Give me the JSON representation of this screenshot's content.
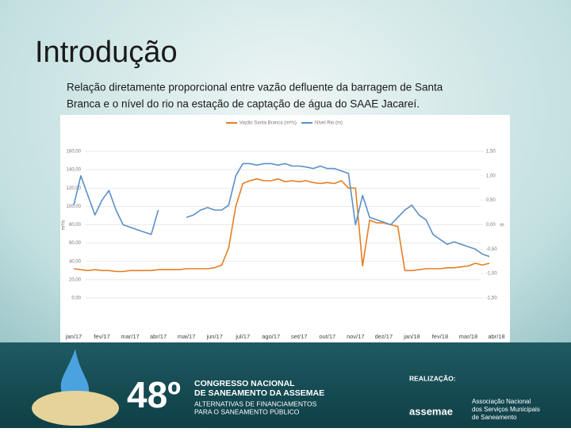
{
  "slide": {
    "title": "Introdução",
    "text_lines": [
      "Relação diretamente proporcional entre vazão defluente da barragem de Santa",
      "Branca e o nível do rio na estação de captação de água do SAAE Jacareí."
    ]
  },
  "chart_data": {
    "type": "line",
    "categories": [
      "jan/17",
      null,
      null,
      null,
      "fev/17",
      null,
      null,
      null,
      "mar/17",
      null,
      null,
      null,
      "abr/17",
      null,
      null,
      null,
      "mai/17",
      null,
      null,
      null,
      "jun/17",
      null,
      null,
      null,
      "jul/17",
      null,
      null,
      null,
      "ago/17",
      null,
      null,
      null,
      "set/17",
      null,
      null,
      null,
      "out/17",
      null,
      null,
      null,
      "nov/17",
      null,
      null,
      null,
      "dez/17",
      null,
      null,
      null,
      "jan/18",
      null,
      null,
      null,
      "fev/18",
      null,
      null,
      null,
      "mar/18",
      null,
      null,
      null,
      "abr/18"
    ],
    "series": [
      {
        "name": "Vazão Santa Branca (m³/s)",
        "color": "#e67e22",
        "values": [
          32,
          31,
          30,
          31,
          30,
          30,
          29,
          29,
          30,
          30,
          30,
          30,
          31,
          31,
          31,
          31,
          32,
          32,
          32,
          32,
          33,
          36,
          55,
          100,
          125,
          128,
          130,
          128,
          128,
          130,
          127,
          128,
          127,
          128,
          126,
          125,
          126,
          125,
          128,
          120,
          120,
          35,
          85,
          82,
          82,
          80,
          78,
          30,
          30,
          31,
          32,
          32,
          32,
          33,
          33,
          34,
          35,
          38,
          36,
          38,
          null
        ]
      },
      {
        "name": "Nível Rio (m)",
        "color": "#5b8fc7",
        "axis": "y2",
        "values": [
          0.4,
          1.0,
          0.6,
          0.2,
          0.5,
          0.7,
          0.3,
          0.0,
          -0.05,
          -0.1,
          -0.15,
          -0.2,
          0.3,
          null,
          null,
          null,
          0.15,
          0.2,
          0.3,
          0.35,
          0.3,
          0.3,
          0.4,
          1.0,
          1.25,
          1.25,
          1.22,
          1.25,
          1.25,
          1.22,
          1.25,
          1.2,
          1.2,
          1.18,
          1.15,
          1.2,
          1.15,
          1.15,
          1.1,
          1.05,
          0.0,
          0.6,
          0.15,
          0.1,
          0.05,
          0.0,
          0.15,
          0.3,
          0.4,
          0.2,
          0.1,
          -0.2,
          -0.3,
          -0.4,
          -0.35,
          -0.4,
          -0.45,
          -0.5,
          -0.6,
          -0.65,
          null
        ]
      }
    ],
    "ylabel": "m³/s",
    "y2label": "m",
    "ylim": [
      0,
      160
    ],
    "yticks": [
      {
        "value": 0,
        "label": "0,00"
      },
      {
        "value": 20,
        "label": "20,00"
      },
      {
        "value": 40,
        "label": "40,00"
      },
      {
        "value": 60,
        "label": "60,00"
      },
      {
        "value": 80,
        "label": "80,00"
      },
      {
        "value": 100,
        "label": "100,00"
      },
      {
        "value": 120,
        "label": "120,00"
      },
      {
        "value": 140,
        "label": "140,00"
      },
      {
        "value": 160,
        "label": "160,00"
      }
    ],
    "y2lim": [
      -1.5,
      1.5
    ],
    "y2ticks": [
      {
        "value": -1.5,
        "label": "-1,50"
      },
      {
        "value": -1,
        "label": "-1,00"
      },
      {
        "value": -0.5,
        "label": "-0,50"
      },
      {
        "value": 0,
        "label": "0,00"
      },
      {
        "value": 0.5,
        "label": "0,50"
      },
      {
        "value": 1,
        "label": "1,00"
      },
      {
        "value": 1.5,
        "label": "1,50"
      }
    ],
    "grid": true
  },
  "footer": {
    "edition": "48º",
    "congress": [
      "CONGRESSO NACIONAL",
      "DE SANEAMENTO DA ASSEMAE"
    ],
    "theme": [
      "ALTERNATIVAS DE FINANCIAMENTOS",
      "PARA O SANEAMENTO PÚBLICO"
    ],
    "realization": "REALIZAÇÃO:",
    "org_short": "assemae",
    "org_name": [
      "Associação Nacional",
      "dos Serviços Municipais",
      "de Saneamento"
    ]
  }
}
